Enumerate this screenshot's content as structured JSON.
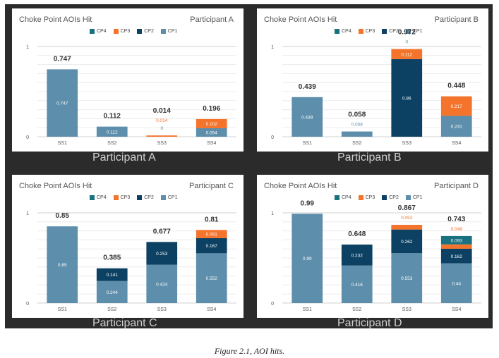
{
  "figure_caption": "Figure 2.1, AOI hits.",
  "colors": {
    "CP4": "#1a7180",
    "CP3": "#f4742c",
    "CP2": "#0c4163",
    "CP1": "#5d8eab"
  },
  "chart_data": [
    {
      "type": "bar",
      "stacked": true,
      "title": "Choke Point AOIs Hit",
      "subtitle": "Participant A",
      "footer_label": "Participant A",
      "categories": [
        "SS1",
        "SS2",
        "SS3",
        "SS4"
      ],
      "series": [
        {
          "name": "CP1",
          "values": [
            0.747,
            0.112,
            0,
            0.094
          ]
        },
        {
          "name": "CP2",
          "values": [
            0,
            0,
            0,
            0
          ]
        },
        {
          "name": "CP3",
          "values": [
            0,
            0,
            0.014,
            0.102
          ]
        },
        {
          "name": "CP4",
          "values": [
            0,
            0,
            0,
            0
          ]
        }
      ],
      "totals": [
        0.747,
        0.112,
        0.014,
        0.196
      ],
      "legend_order": [
        "CP4",
        "CP3",
        "CP2",
        "CP1"
      ],
      "yticks": [
        "0",
        "1"
      ],
      "ylim": [
        0,
        1
      ],
      "legend": "top-center",
      "grid": true
    },
    {
      "type": "bar",
      "stacked": true,
      "title": "Choke Point AOIs Hit",
      "subtitle": "Participant B",
      "footer_label": "Participant B",
      "categories": [
        "SS1",
        "SS2",
        "SS3",
        "SS4"
      ],
      "series": [
        {
          "name": "CP1",
          "values": [
            0.439,
            0.058,
            0,
            0.231
          ]
        },
        {
          "name": "CP2",
          "values": [
            0,
            0,
            0.86,
            0
          ]
        },
        {
          "name": "CP3",
          "values": [
            0,
            0,
            0.112,
            0.217
          ]
        },
        {
          "name": "CP4",
          "values": [
            0,
            0,
            0,
            0
          ]
        }
      ],
      "totals": [
        0.439,
        0.058,
        0.972,
        0.448
      ],
      "legend_order": [
        "CP4",
        "CP3",
        "CP2",
        "CP1"
      ],
      "yticks": [
        "0",
        "1"
      ],
      "ylim": [
        0,
        1
      ],
      "legend": "top-center",
      "grid": true
    },
    {
      "type": "bar",
      "stacked": true,
      "title": "Choke Point AOIs Hit",
      "subtitle": "Participant C",
      "footer_label": "Participant C",
      "categories": [
        "SS1",
        "SS2",
        "SS3",
        "SS4"
      ],
      "series": [
        {
          "name": "CP1",
          "values": [
            0.85,
            0.244,
            0.424,
            0.552
          ]
        },
        {
          "name": "CP2",
          "values": [
            0,
            0.141,
            0.253,
            0.167
          ]
        },
        {
          "name": "CP3",
          "values": [
            0,
            0,
            0,
            0.091
          ]
        },
        {
          "name": "CP4",
          "values": [
            0,
            0,
            0,
            0
          ]
        }
      ],
      "totals": [
        0.85,
        0.385,
        0.677,
        0.81
      ],
      "legend_order": [
        "CP4",
        "CP3",
        "CP2",
        "CP1"
      ],
      "yticks": [
        "0",
        "1"
      ],
      "ylim": [
        0,
        1
      ],
      "legend": "top-center",
      "grid": true
    },
    {
      "type": "bar",
      "stacked": true,
      "title": "Choke Point AOIs Hit",
      "subtitle": "Participant D",
      "footer_label": "Participant D",
      "categories": [
        "SS1",
        "SS2",
        "SS3",
        "SS4"
      ],
      "series": [
        {
          "name": "CP1",
          "values": [
            0.99,
            0.416,
            0.553,
            0.44
          ]
        },
        {
          "name": "CP2",
          "values": [
            0,
            0.232,
            0.262,
            0.162
          ]
        },
        {
          "name": "CP3",
          "values": [
            0,
            0,
            0.052,
            0.048
          ]
        },
        {
          "name": "CP4",
          "values": [
            0,
            0,
            0,
            0.093
          ]
        }
      ],
      "totals": [
        0.99,
        0.648,
        0.867,
        0.743
      ],
      "legend_order": [
        "CP4",
        "CP3",
        "CP2",
        "CP1"
      ],
      "yticks": [
        "0",
        "1"
      ],
      "ylim": [
        0,
        1
      ],
      "legend": "top-center",
      "grid": true
    }
  ]
}
